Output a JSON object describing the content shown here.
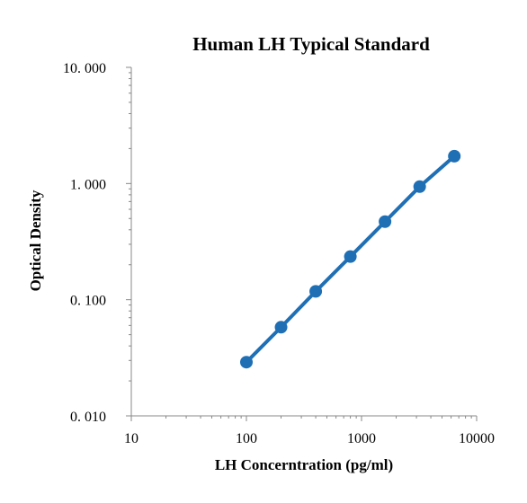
{
  "chart_data": {
    "type": "line",
    "title": "Human LH Typical Standard",
    "xlabel": "LH Concerntration (pg/ml)",
    "ylabel": "Optical Density",
    "x_scale": "log",
    "y_scale": "log",
    "xlim": [
      10,
      10000
    ],
    "ylim": [
      0.01,
      10
    ],
    "x_ticks": [
      10,
      100,
      1000,
      10000
    ],
    "x_tick_labels": [
      "10",
      "100",
      "1000",
      "10000"
    ],
    "y_ticks": [
      0.01,
      0.1,
      1,
      10
    ],
    "y_tick_labels": [
      "0. 010",
      "0. 100",
      "1. 000",
      "10. 000"
    ],
    "grid": false,
    "legend": "none",
    "series": [
      {
        "color": "#1f6fb5",
        "marker": "circle",
        "x": [
          100,
          200,
          400,
          800,
          1600,
          3200,
          6400
        ],
        "y": [
          0.029,
          0.058,
          0.118,
          0.235,
          0.47,
          0.94,
          1.72
        ]
      }
    ]
  }
}
